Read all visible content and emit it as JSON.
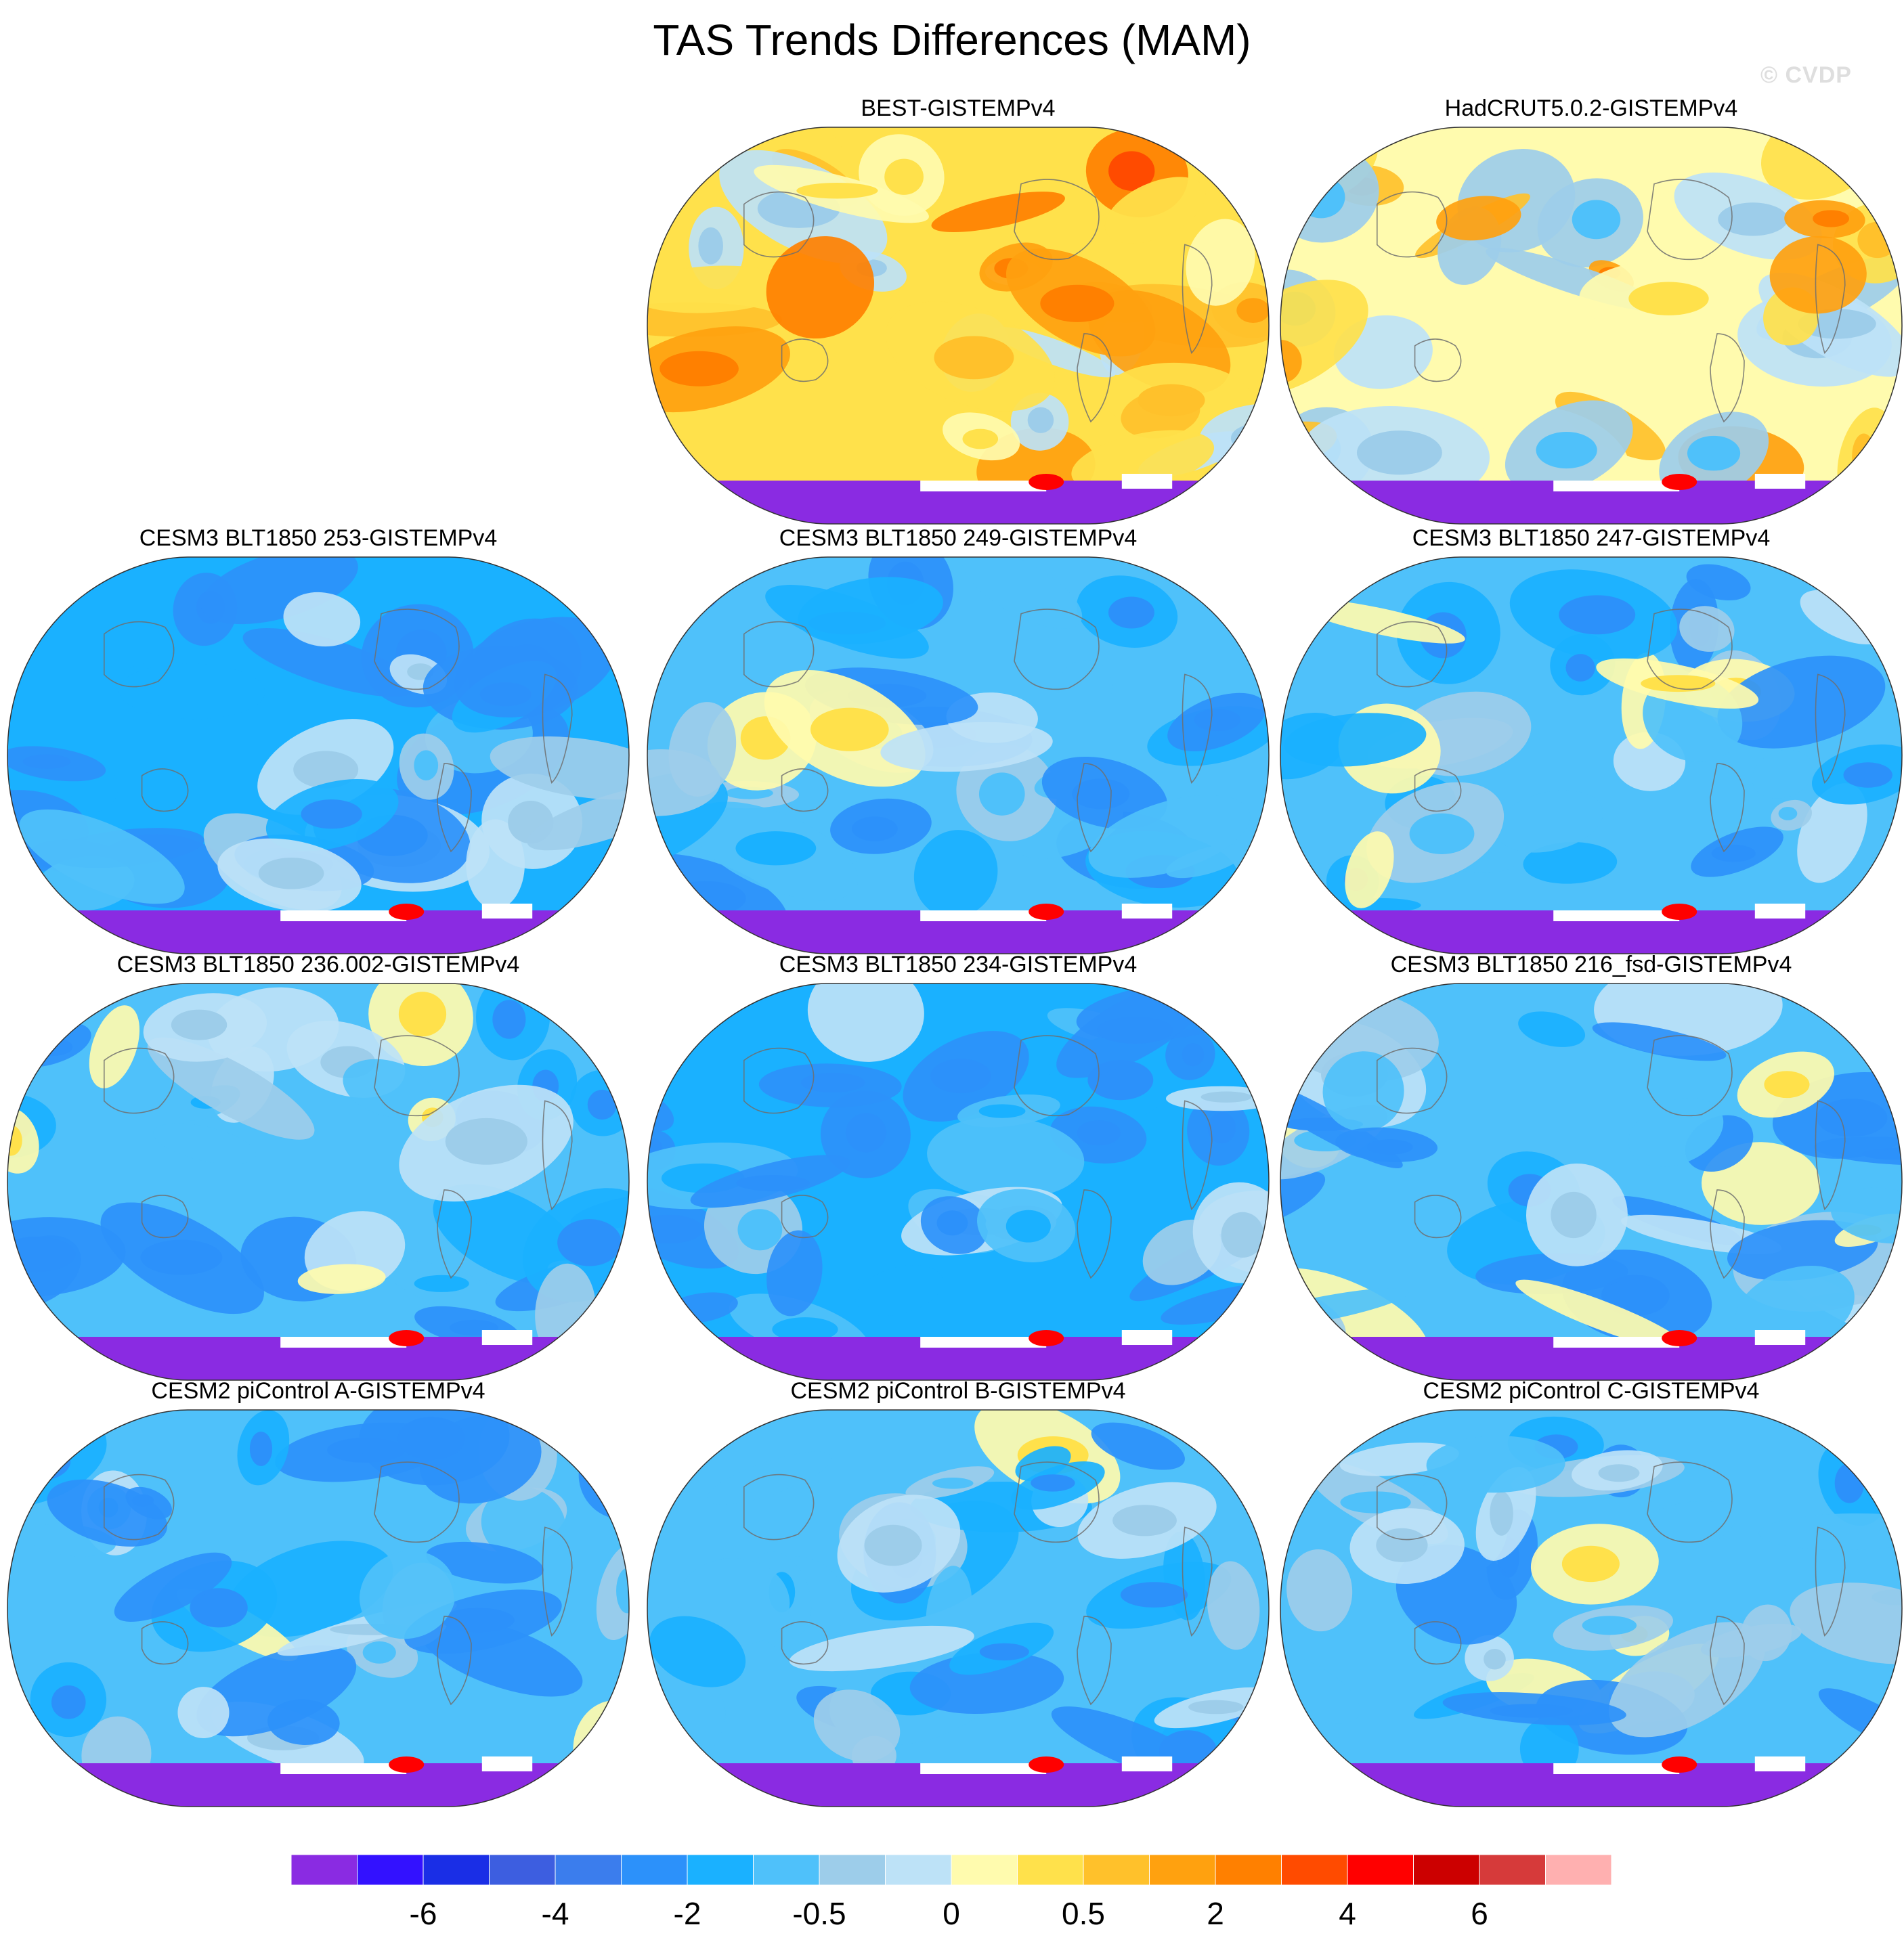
{
  "chart_data": {
    "type": "map-panels",
    "title": "TAS Trends Differences (MAM)",
    "watermark": "© CVDP",
    "projection": "Robinson (Pacific centered)",
    "panels": [
      {
        "title": "BEST-GISTEMPv4",
        "row": 0,
        "col": 1,
        "base_level": 11,
        "mean_anomaly": 0.9
      },
      {
        "title": "HadCRUT5.0.2-GISTEMPv4",
        "row": 0,
        "col": 2,
        "base_level": 10,
        "mean_anomaly": 0.6
      },
      {
        "title": "CESM3 BLT1850 253-GISTEMPv4",
        "row": 1,
        "col": 0,
        "base_level": 6,
        "mean_anomaly": -1.5
      },
      {
        "title": "CESM3 BLT1850 249-GISTEMPv4",
        "row": 1,
        "col": 1,
        "base_level": 7,
        "mean_anomaly": -1.0
      },
      {
        "title": "CESM3 BLT1850 247-GISTEMPv4",
        "row": 1,
        "col": 2,
        "base_level": 7,
        "mean_anomaly": -0.8
      },
      {
        "title": "CESM3 BLT1850 236.002-GISTEMPv4",
        "row": 2,
        "col": 0,
        "base_level": 7,
        "mean_anomaly": -0.7
      },
      {
        "title": "CESM3 BLT1850 234-GISTEMPv4",
        "row": 2,
        "col": 1,
        "base_level": 6,
        "mean_anomaly": -1.2
      },
      {
        "title": "CESM3 BLT1850 216_fsd-GISTEMPv4",
        "row": 2,
        "col": 2,
        "base_level": 7,
        "mean_anomaly": -0.6
      },
      {
        "title": "CESM2 piControl A-GISTEMPv4",
        "row": 3,
        "col": 0,
        "base_level": 7,
        "mean_anomaly": -0.7
      },
      {
        "title": "CESM2 piControl B-GISTEMPv4",
        "row": 3,
        "col": 1,
        "base_level": 7,
        "mean_anomaly": -0.6
      },
      {
        "title": "CESM2 piControl C-GISTEMPv4",
        "row": 3,
        "col": 2,
        "base_level": 7,
        "mean_anomaly": -0.6
      }
    ],
    "colorbar": {
      "colors": [
        "#8a2be2",
        "#3311ff",
        "#1a2ee6",
        "#3d5ee0",
        "#3b7ded",
        "#2c91fa",
        "#1ab1ff",
        "#4fc1fa",
        "#9dcdea",
        "#bde2f7",
        "#fffbae",
        "#ffe14b",
        "#ffc12b",
        "#ffa10f",
        "#ff8000",
        "#ff4b00",
        "#ff0000",
        "#cc0000",
        "#d63a3a",
        "#ffb0b0"
      ],
      "tick_labels": [
        "-6",
        "-4",
        "-2",
        "-0.5",
        "0",
        "0.5",
        "2",
        "4",
        "6"
      ],
      "tick_boundaries": [
        2,
        4,
        6,
        8,
        10,
        12,
        14,
        16,
        18
      ]
    },
    "antarctic_fill": "#8a2be2"
  }
}
